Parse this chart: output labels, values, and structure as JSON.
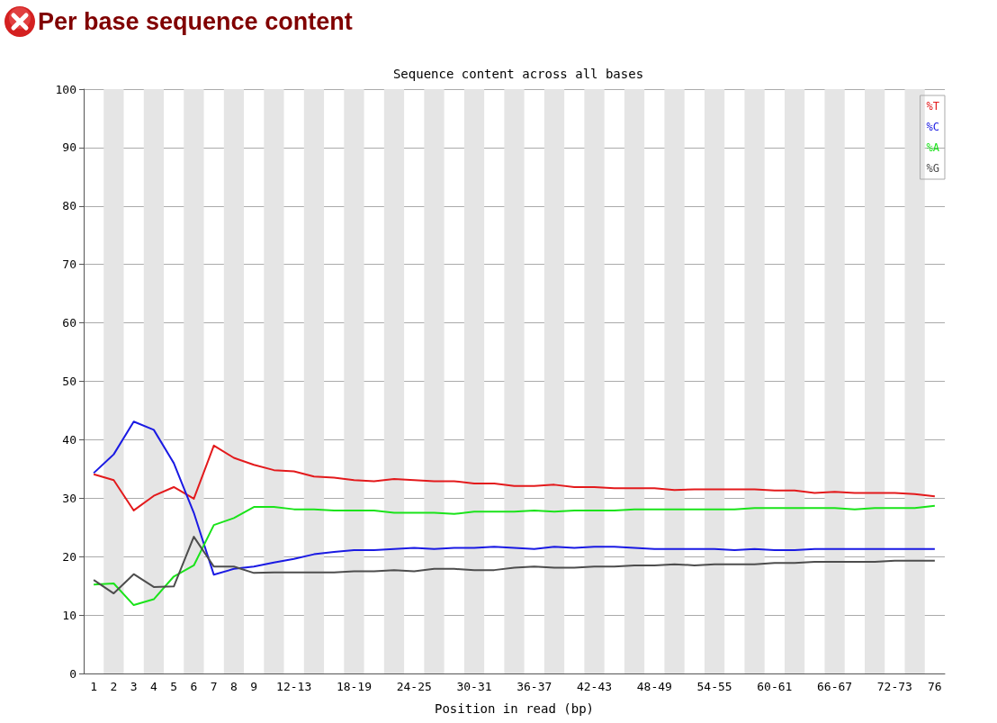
{
  "chart_data": {
    "type": "line",
    "title": "Per base sequence content",
    "subtitle": "Sequence content across all bases",
    "xlabel": "Position in read (bp)",
    "categories": [
      "1",
      "2",
      "3",
      "4",
      "5",
      "6",
      "7",
      "8",
      "9",
      null,
      "12-13",
      null,
      null,
      "18-19",
      null,
      null,
      "24-25",
      null,
      null,
      "30-31",
      null,
      null,
      "36-37",
      null,
      null,
      "42-43",
      null,
      null,
      "48-49",
      null,
      null,
      "54-55",
      null,
      null,
      "60-61",
      null,
      null,
      "66-67",
      null,
      null,
      "72-73",
      null,
      "76"
    ],
    "series": [
      {
        "name": "%T",
        "color": "#e31a1c",
        "values": [
          34.1,
          33.1,
          27.9,
          30.4,
          31.9,
          29.9,
          39.0,
          36.9,
          35.7,
          34.8,
          34.6,
          33.7,
          33.5,
          33.1,
          32.9,
          33.3,
          33.1,
          32.9,
          32.9,
          32.5,
          32.5,
          32.1,
          32.1,
          32.3,
          31.9,
          31.9,
          31.7,
          31.7,
          31.7,
          31.4,
          31.5,
          31.5,
          31.5,
          31.5,
          31.3,
          31.3,
          30.9,
          31.1,
          30.9,
          30.9,
          30.9,
          30.7,
          30.3
        ]
      },
      {
        "name": "%C",
        "color": "#1a1ae3",
        "values": [
          34.3,
          37.5,
          43.1,
          41.7,
          36.0,
          27.5,
          16.9,
          17.9,
          18.3,
          19.0,
          19.6,
          20.4,
          20.8,
          21.1,
          21.1,
          21.3,
          21.5,
          21.3,
          21.5,
          21.5,
          21.7,
          21.5,
          21.3,
          21.7,
          21.5,
          21.7,
          21.7,
          21.5,
          21.3,
          21.3,
          21.3,
          21.3,
          21.1,
          21.3,
          21.1,
          21.1,
          21.3,
          21.3,
          21.3,
          21.3,
          21.3,
          21.3,
          21.3
        ]
      },
      {
        "name": "%A",
        "color": "#1ae31a",
        "values": [
          15.2,
          15.4,
          11.7,
          12.7,
          16.6,
          18.5,
          25.4,
          26.6,
          28.5,
          28.5,
          28.1,
          28.1,
          27.9,
          27.9,
          27.9,
          27.5,
          27.5,
          27.5,
          27.3,
          27.7,
          27.7,
          27.7,
          27.9,
          27.7,
          27.9,
          27.9,
          27.9,
          28.1,
          28.1,
          28.1,
          28.1,
          28.1,
          28.1,
          28.3,
          28.3,
          28.3,
          28.3,
          28.3,
          28.1,
          28.3,
          28.3,
          28.3,
          28.7
        ]
      },
      {
        "name": "%G",
        "color": "#4d4d4d",
        "values": [
          16.0,
          13.7,
          17.0,
          14.8,
          14.9,
          23.4,
          18.3,
          18.3,
          17.2,
          17.3,
          17.3,
          17.3,
          17.3,
          17.5,
          17.5,
          17.7,
          17.5,
          17.9,
          17.9,
          17.7,
          17.7,
          18.1,
          18.3,
          18.1,
          18.1,
          18.3,
          18.3,
          18.5,
          18.5,
          18.7,
          18.5,
          18.7,
          18.7,
          18.7,
          18.9,
          18.9,
          19.1,
          19.1,
          19.1,
          19.1,
          19.3,
          19.3,
          19.3
        ]
      }
    ],
    "ylim": [
      0,
      100
    ],
    "yticks": [
      0,
      10,
      20,
      30,
      40,
      50,
      60,
      70,
      80,
      90,
      100
    ],
    "grid": "y",
    "legend": "top right",
    "marker": "none",
    "line_style": "solid"
  }
}
